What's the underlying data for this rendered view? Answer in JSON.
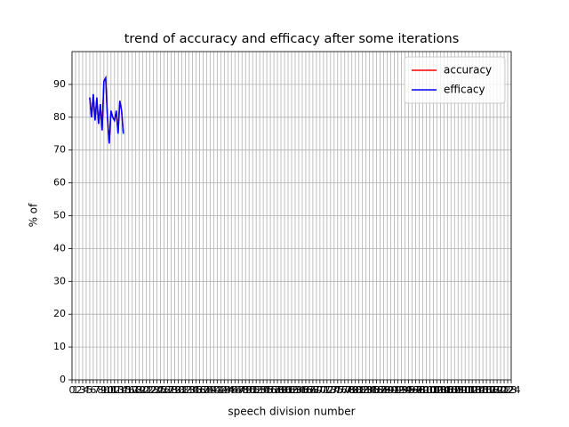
{
  "chart_data": {
    "type": "line",
    "title": "trend of accuracy and efficacy after some iterations",
    "x_label": "speech division number",
    "y_label": "% of",
    "x": [
      5,
      5.5,
      6,
      6.5,
      7,
      7.5,
      8,
      8.5,
      9,
      9.5,
      10,
      10.5,
      11,
      11.5,
      12,
      12.5,
      13,
      13.5,
      14,
      14.5
    ],
    "series": [
      {
        "name": "accuracy",
        "color": "#ff0000",
        "values": [
          86,
          80,
          87,
          79,
          86,
          78,
          84,
          76,
          91,
          92,
          80,
          72,
          82,
          80,
          79,
          82,
          75,
          85,
          82,
          75
        ]
      },
      {
        "name": "efficacy",
        "color": "#0000ff",
        "values": [
          86,
          80,
          87,
          79,
          86,
          78,
          84,
          76,
          91,
          92,
          80,
          72,
          82,
          80,
          79,
          82,
          75,
          85,
          82,
          75
        ]
      }
    ],
    "xlim": [
      0,
      124
    ],
    "xticks": [
      0,
      1,
      2,
      3,
      4,
      5,
      6,
      7,
      8,
      9,
      10,
      11,
      12,
      13,
      14,
      15,
      16,
      17,
      18,
      19,
      20,
      21,
      22,
      23,
      24,
      25,
      26,
      27,
      28,
      29,
      30,
      31,
      32,
      33,
      34,
      35,
      36,
      37,
      38,
      39,
      40,
      41,
      42,
      43,
      44,
      45,
      46,
      47,
      48,
      49,
      50,
      51,
      52,
      53,
      54,
      55,
      56,
      57,
      58,
      59,
      60,
      61,
      62,
      63,
      64,
      65,
      66,
      67,
      68,
      69,
      70,
      71,
      72,
      73,
      74,
      75,
      76,
      77,
      78,
      79,
      80,
      81,
      82,
      83,
      84,
      85,
      86,
      87,
      88,
      89,
      90,
      91,
      92,
      93,
      94,
      95,
      96,
      97,
      98,
      99,
      100,
      101,
      102,
      103,
      104,
      105,
      106,
      107,
      108,
      109,
      110,
      111,
      112,
      113,
      114,
      115,
      116,
      117,
      118,
      119,
      120,
      121,
      122,
      123,
      124
    ],
    "ylim": [
      0,
      100
    ],
    "yticks": [
      0,
      10,
      20,
      30,
      40,
      50,
      60,
      70,
      80,
      90
    ],
    "grid": true,
    "legend": "upper right"
  }
}
